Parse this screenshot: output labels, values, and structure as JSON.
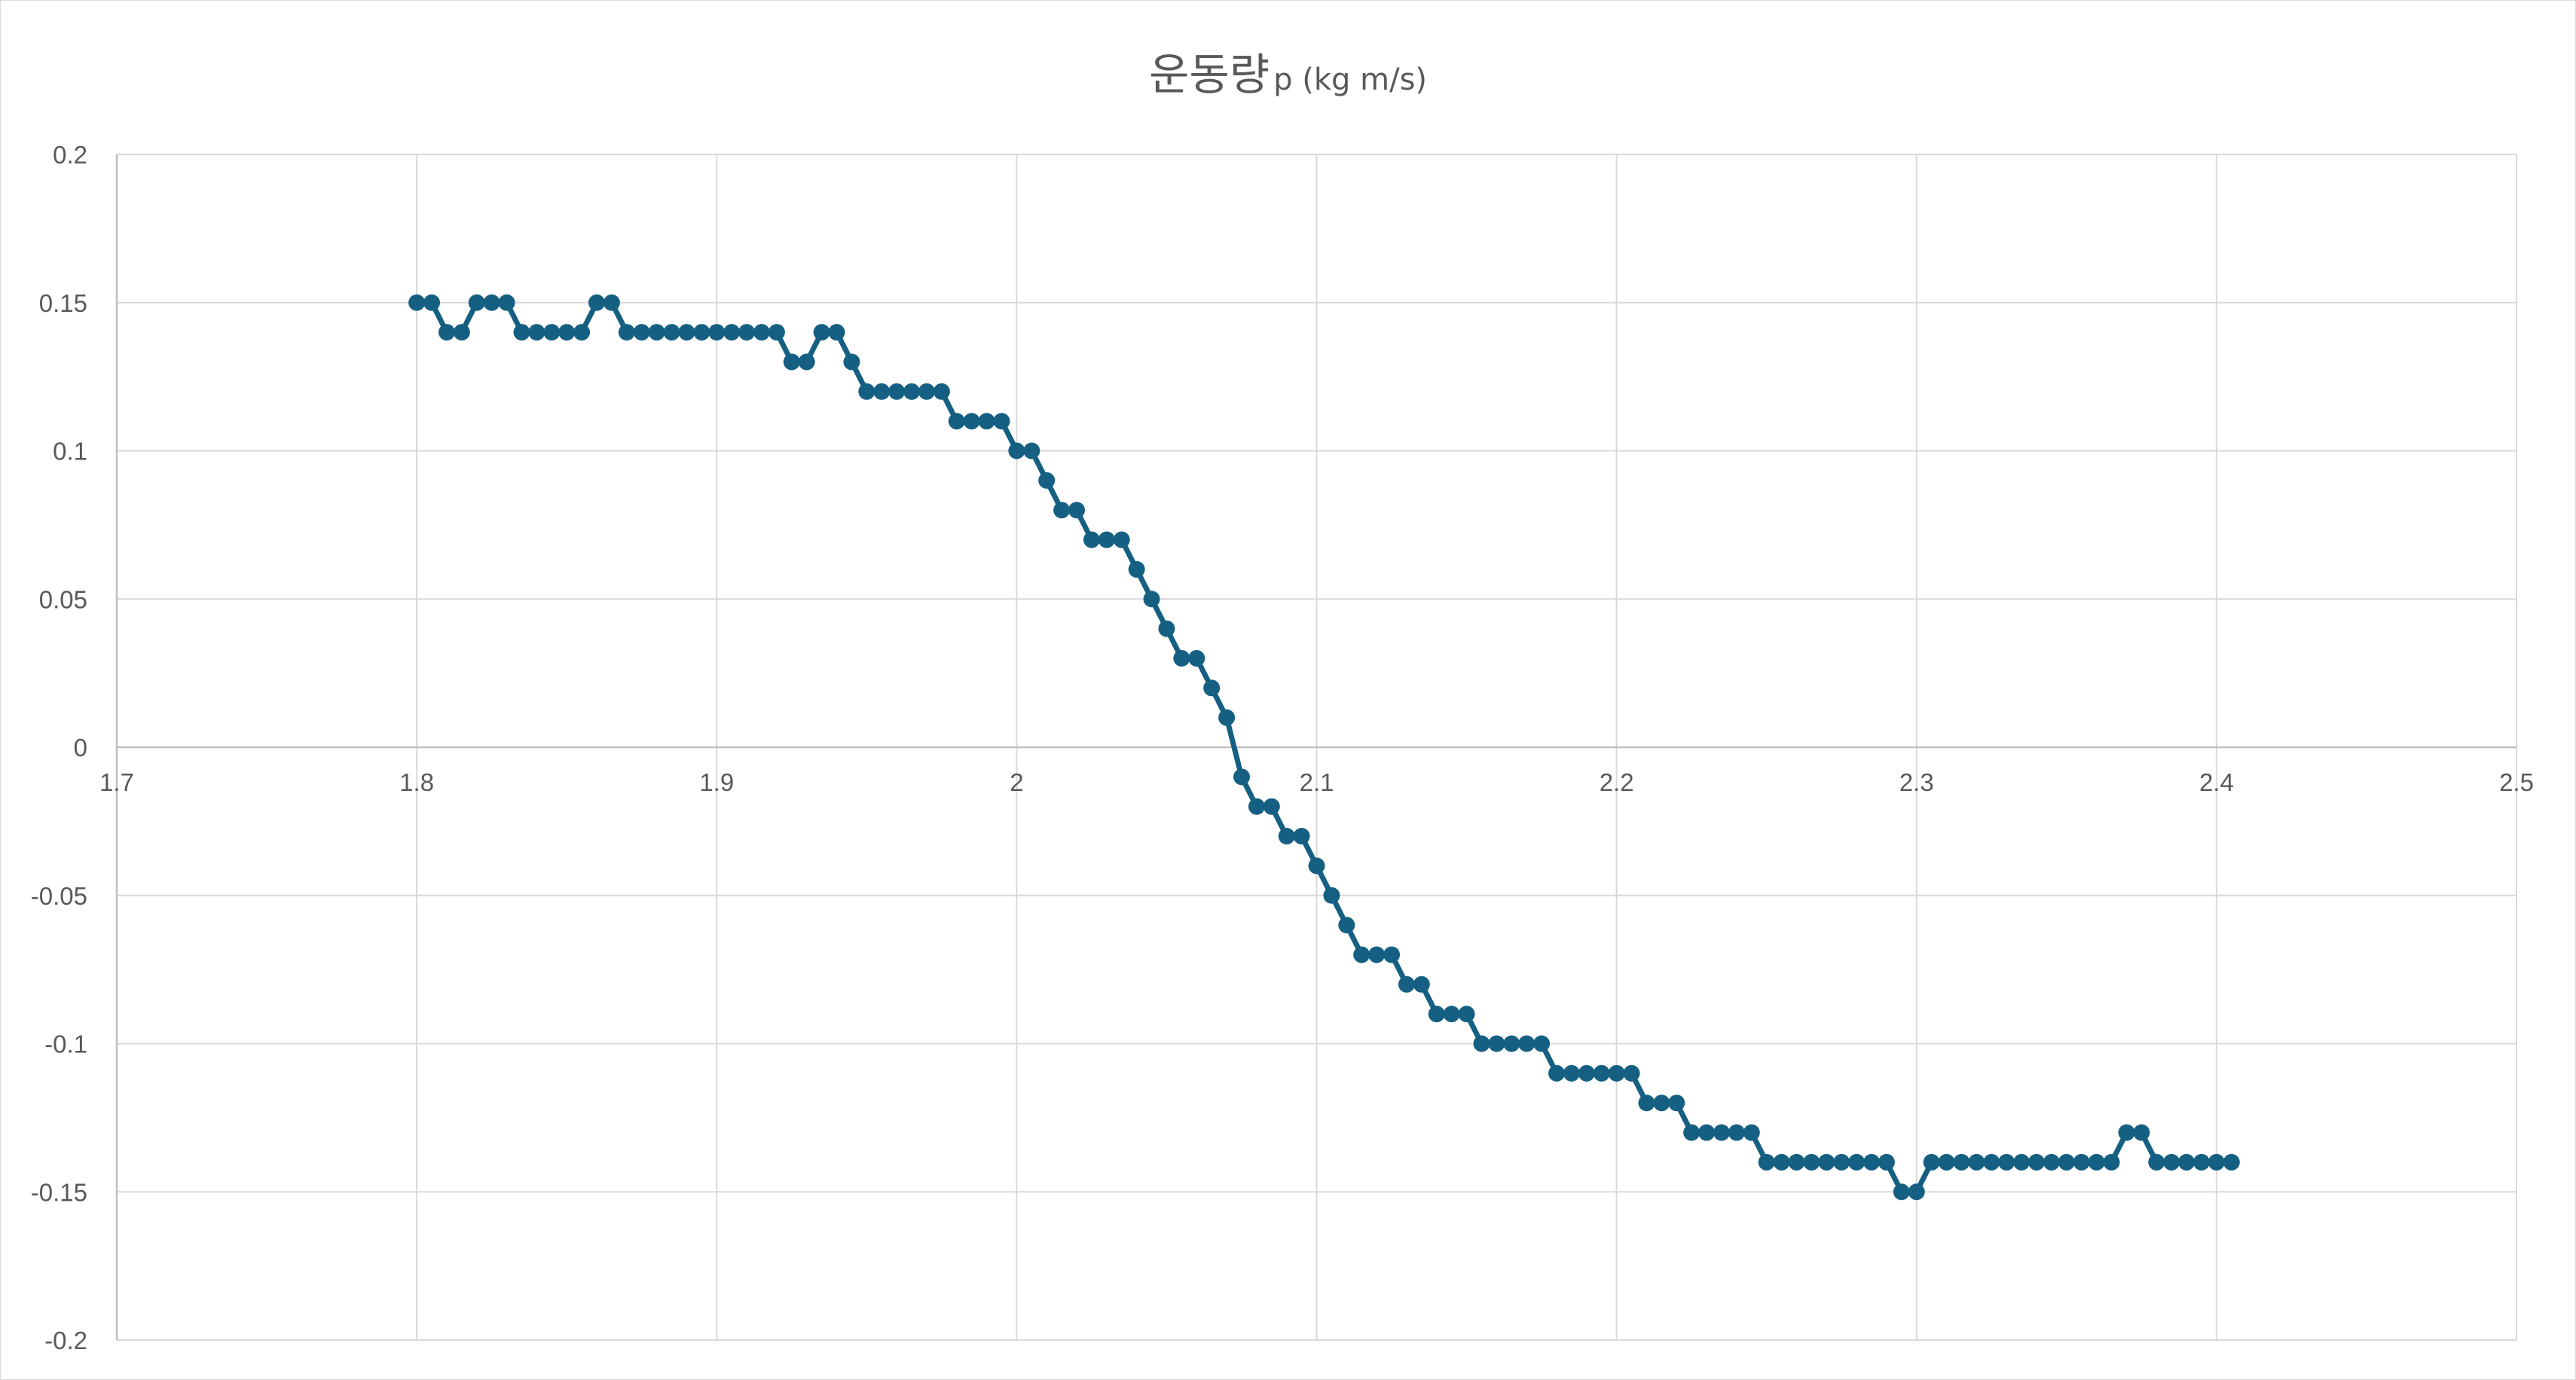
{
  "chart_data": {
    "type": "scatter",
    "title": "운동량",
    "title_unit": "p (kg m/s)",
    "xlabel": "",
    "ylabel": "",
    "xlim": [
      1.7,
      2.5
    ],
    "ylim": [
      -0.2,
      0.2
    ],
    "x_ticks": [
      1.7,
      1.8,
      1.9,
      2.0,
      2.1,
      2.2,
      2.3,
      2.4,
      2.5
    ],
    "x_tick_labels": [
      "1.7",
      "1.8",
      "1.9",
      "2",
      "2.1",
      "2.2",
      "2.3",
      "2.4",
      "2.5"
    ],
    "y_ticks": [
      0.2,
      0.15,
      0.1,
      0.05,
      0,
      -0.05,
      -0.1,
      -0.15,
      -0.2
    ],
    "y_tick_labels": [
      "0.2",
      "0.15",
      "0.1",
      "0.05",
      "0",
      "-0.05",
      "-0.1",
      "-0.15",
      "-0.2"
    ],
    "grid": true,
    "legend": "none",
    "series": [
      {
        "color": "#156082",
        "x_start": 1.8,
        "x_step": 0.005,
        "y": [
          0.15,
          0.15,
          0.14,
          0.14,
          0.15,
          0.15,
          0.15,
          0.14,
          0.14,
          0.14,
          0.14,
          0.14,
          0.15,
          0.15,
          0.14,
          0.14,
          0.14,
          0.14,
          0.14,
          0.14,
          0.14,
          0.14,
          0.14,
          0.14,
          0.14,
          0.13,
          0.13,
          0.14,
          0.14,
          0.13,
          0.12,
          0.12,
          0.12,
          0.12,
          0.12,
          0.12,
          0.11,
          0.11,
          0.11,
          0.11,
          0.1,
          0.1,
          0.09,
          0.08,
          0.08,
          0.07,
          0.07,
          0.07,
          0.06,
          0.05,
          0.04,
          0.03,
          0.03,
          0.02,
          0.01,
          -0.01,
          -0.02,
          -0.02,
          -0.03,
          -0.03,
          -0.04,
          -0.05,
          -0.06,
          -0.07,
          -0.07,
          -0.07,
          -0.08,
          -0.08,
          -0.09,
          -0.09,
          -0.09,
          -0.1,
          -0.1,
          -0.1,
          -0.1,
          -0.1,
          -0.11,
          -0.11,
          -0.11,
          -0.11,
          -0.11,
          -0.11,
          -0.12,
          -0.12,
          -0.12,
          -0.13,
          -0.13,
          -0.13,
          -0.13,
          -0.13,
          -0.14,
          -0.14,
          -0.14,
          -0.14,
          -0.14,
          -0.14,
          -0.14,
          -0.14,
          -0.14,
          -0.15,
          -0.15,
          -0.14,
          -0.14,
          -0.14,
          -0.14,
          -0.14,
          -0.14,
          -0.14,
          -0.14,
          -0.14,
          -0.14,
          -0.14,
          -0.14,
          -0.14,
          -0.13,
          -0.13,
          -0.14,
          -0.14,
          -0.14,
          -0.14,
          -0.14,
          -0.14
        ]
      }
    ]
  }
}
